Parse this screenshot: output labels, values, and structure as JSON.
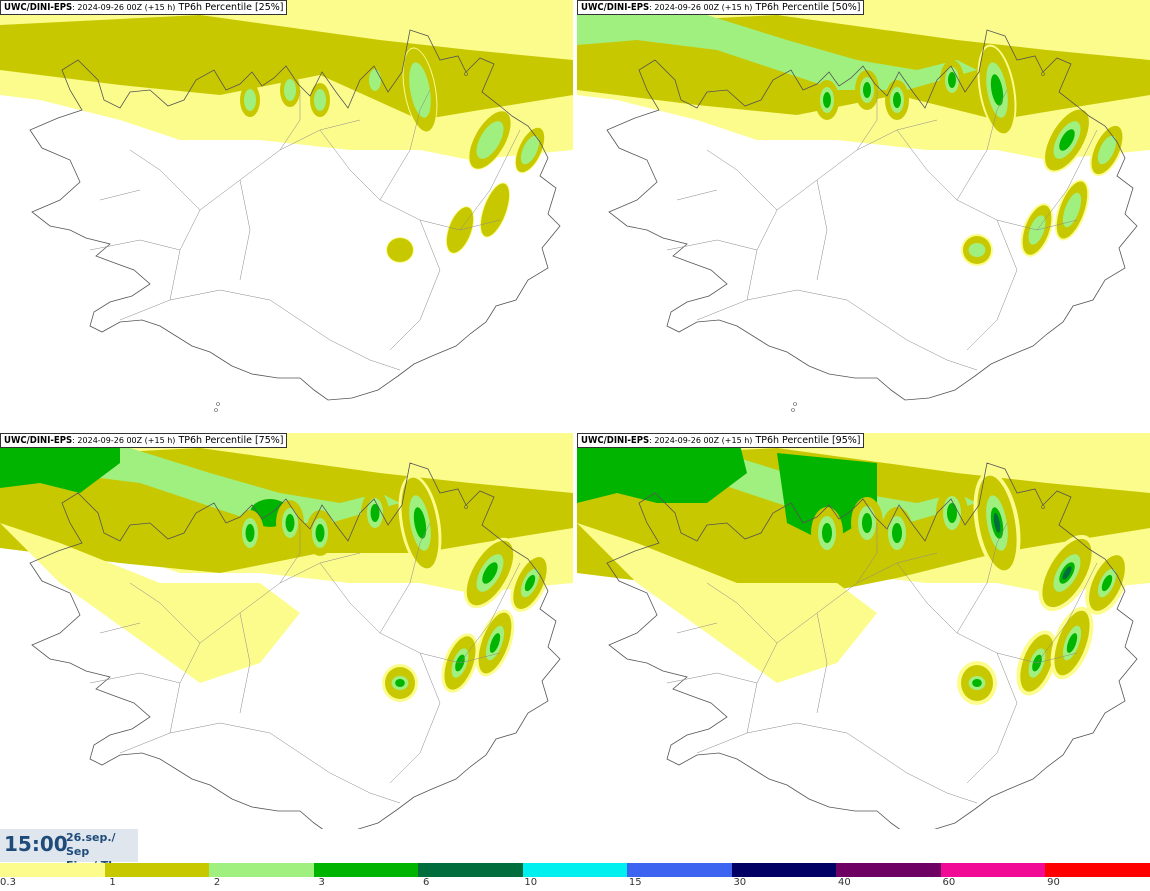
{
  "panels": [
    {
      "model": "UWC/DINI-EPS",
      "meta": ": 2024-09-26 00Z (+15 h)",
      "product": "TP6h Percentile [25%]",
      "level": 1
    },
    {
      "model": "UWC/DINI-EPS",
      "meta": ": 2024-09-26 00Z (+15 h)",
      "product": "TP6h Percentile [50%]",
      "level": 2
    },
    {
      "model": "UWC/DINI-EPS",
      "meta": ": 2024-09-26 00Z (+15 h)",
      "product": "TP6h Percentile [75%]",
      "level": 3
    },
    {
      "model": "UWC/DINI-EPS",
      "meta": ": 2024-09-26 00Z (+15 h)",
      "product": "TP6h Percentile [95%]",
      "level": 4
    }
  ],
  "valid_time": {
    "time": "15:00",
    "date_line1": "26.sep./ Sep",
    "date_line2": "Fim./ Thu"
  },
  "colorbar": {
    "colors": [
      "#fcfc8c",
      "#c8c800",
      "#a0f080",
      "#00b400",
      "#006e3c",
      "#00f0f0",
      "#3c64f0",
      "#000064",
      "#6e0064",
      "#f00a96",
      "#ff0000"
    ],
    "ticks": [
      "0.3",
      "1",
      "2",
      "3",
      "6",
      "10",
      "15",
      "30",
      "40",
      "60",
      "90"
    ]
  }
}
